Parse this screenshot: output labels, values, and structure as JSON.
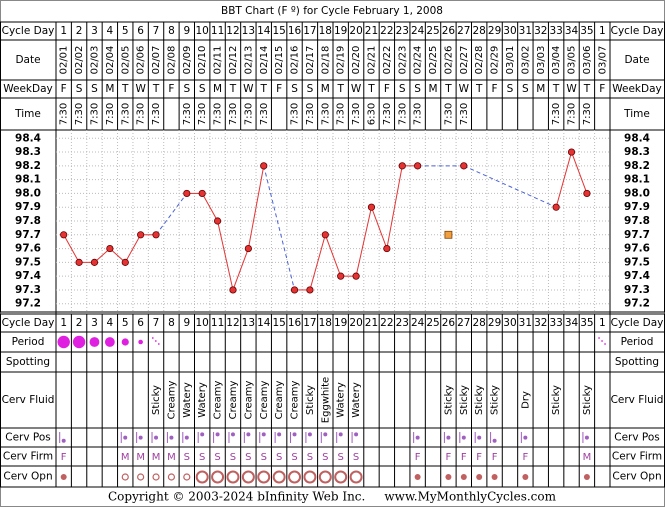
{
  "chart_data": {
    "type": "line",
    "title": "BBT Chart (F º) for Cycle February 1, 2008",
    "row_labels": {
      "cycle_day": "Cycle Day",
      "date": "Date",
      "weekday": "WeekDay",
      "time": "Time",
      "period": "Period",
      "spotting": "Spotting",
      "cerv_fluid": "Cerv Fluid",
      "cerv_pos": "Cerv Pos",
      "cerv_firm": "Cerv Firm",
      "cerv_opn": "Cerv Opn"
    },
    "categories": [
      "1",
      "2",
      "3",
      "4",
      "5",
      "6",
      "7",
      "8",
      "9",
      "10",
      "11",
      "12",
      "13",
      "14",
      "15",
      "16",
      "17",
      "18",
      "19",
      "20",
      "21",
      "22",
      "23",
      "24",
      "25",
      "26",
      "27",
      "28",
      "29",
      "30",
      "31",
      "32",
      "33",
      "34",
      "35",
      "1"
    ],
    "dates": [
      "02/01",
      "02/02",
      "02/03",
      "02/04",
      "02/05",
      "02/06",
      "02/07",
      "02/08",
      "02/09",
      "02/10",
      "02/11",
      "02/12",
      "02/13",
      "02/14",
      "02/15",
      "02/16",
      "02/17",
      "02/18",
      "02/19",
      "02/20",
      "02/21",
      "02/22",
      "02/23",
      "02/24",
      "02/25",
      "02/26",
      "02/27",
      "02/28",
      "02/29",
      "03/01",
      "03/02",
      "03/03",
      "03/04",
      "03/05",
      "03/06",
      "03/07"
    ],
    "weekdays": [
      "F",
      "S",
      "S",
      "M",
      "T",
      "W",
      "T",
      "F",
      "S",
      "S",
      "M",
      "T",
      "W",
      "T",
      "F",
      "S",
      "S",
      "M",
      "T",
      "W",
      "T",
      "F",
      "S",
      "S",
      "M",
      "T",
      "W",
      "T",
      "F",
      "S",
      "S",
      "M",
      "T",
      "W",
      "T",
      "F"
    ],
    "times": [
      "7:30",
      "7:30",
      "7:30",
      "7:30",
      "7:30",
      "7:30",
      "7:30",
      null,
      "7:30",
      "7:30",
      "7:30",
      "7:30",
      "7:30",
      "7:30",
      null,
      "7:30",
      "7:30",
      "7:30",
      "7:30",
      "7:30",
      "6:30",
      "7:30",
      "7:30",
      "7:30",
      null,
      "7:30",
      "7:30",
      null,
      null,
      null,
      null,
      null,
      "7:30",
      "7:30",
      "7:30",
      null
    ],
    "series": [
      {
        "name": "Temperature",
        "color": "#e53333",
        "values": [
          97.7,
          97.5,
          97.5,
          97.6,
          97.5,
          97.7,
          97.7,
          null,
          98.0,
          98.0,
          97.8,
          97.3,
          97.6,
          98.2,
          null,
          97.3,
          97.3,
          97.7,
          97.4,
          97.4,
          97.9,
          97.6,
          98.2,
          98.2,
          null,
          null,
          98.2,
          null,
          null,
          null,
          null,
          null,
          97.9,
          98.3,
          98.0,
          null
        ]
      },
      {
        "name": "Discarded",
        "color": "#f0a040",
        "values": [
          null,
          null,
          null,
          null,
          null,
          null,
          null,
          null,
          null,
          null,
          null,
          null,
          null,
          null,
          null,
          null,
          null,
          null,
          null,
          null,
          null,
          null,
          null,
          null,
          null,
          97.7,
          null,
          null,
          null,
          null,
          null,
          null,
          null,
          null,
          null,
          null
        ]
      }
    ],
    "gap_color": "#4b63d8",
    "ylim": [
      97.14,
      98.46
    ],
    "yticks": [
      97.2,
      97.3,
      97.4,
      97.5,
      97.6,
      97.7,
      97.8,
      97.9,
      {
        "value": 98,
        "label": "98.0"
      },
      98.1,
      98.2,
      98.3,
      98.4
    ],
    "period": [
      4,
      4,
      3,
      3,
      2,
      1,
      0,
      null,
      null,
      null,
      null,
      null,
      null,
      null,
      null,
      null,
      null,
      null,
      null,
      null,
      null,
      null,
      null,
      null,
      null,
      null,
      null,
      null,
      null,
      null,
      null,
      null,
      null,
      null,
      null,
      0
    ],
    "cerv_fluid": [
      null,
      null,
      null,
      null,
      null,
      null,
      "Sticky",
      "Creamy",
      "Watery",
      "Watery",
      "Creamy",
      "Creamy",
      "Creamy",
      "Creamy",
      "Creamy",
      "Creamy",
      "Sticky",
      "Eggwhite",
      "Watery",
      "Watery",
      null,
      null,
      null,
      null,
      null,
      "Sticky",
      "Sticky",
      "Sticky",
      "Sticky",
      null,
      "Dry",
      null,
      "Sticky",
      null,
      "Sticky",
      null
    ],
    "cerv_pos": [
      1,
      null,
      null,
      null,
      2,
      2,
      2,
      2,
      2,
      3,
      3,
      3,
      3,
      3,
      3,
      3,
      3,
      3,
      3,
      3,
      null,
      null,
      null,
      2,
      null,
      2,
      2,
      2,
      1,
      null,
      2,
      null,
      null,
      null,
      2,
      null
    ],
    "cerv_firm": [
      "F",
      null,
      null,
      null,
      "M",
      "M",
      "M",
      "M",
      "S",
      "S",
      "S",
      "S",
      "S",
      "S",
      "S",
      "S",
      "S",
      "S",
      "S",
      "S",
      null,
      null,
      null,
      "F",
      null,
      "F",
      "F",
      "F",
      "F",
      null,
      "F",
      null,
      null,
      null,
      "M",
      null
    ],
    "cerv_opn": [
      0,
      null,
      null,
      null,
      1,
      1,
      1,
      1,
      1,
      2,
      2,
      2,
      2,
      2,
      2,
      2,
      2,
      2,
      2,
      2,
      null,
      null,
      null,
      0,
      null,
      0,
      0,
      0,
      0,
      null,
      0,
      null,
      null,
      null,
      0,
      null
    ],
    "footer": "Copyright © 2003-2024 bInfinity Web Inc.     www.MyMonthlyCycles.com"
  }
}
